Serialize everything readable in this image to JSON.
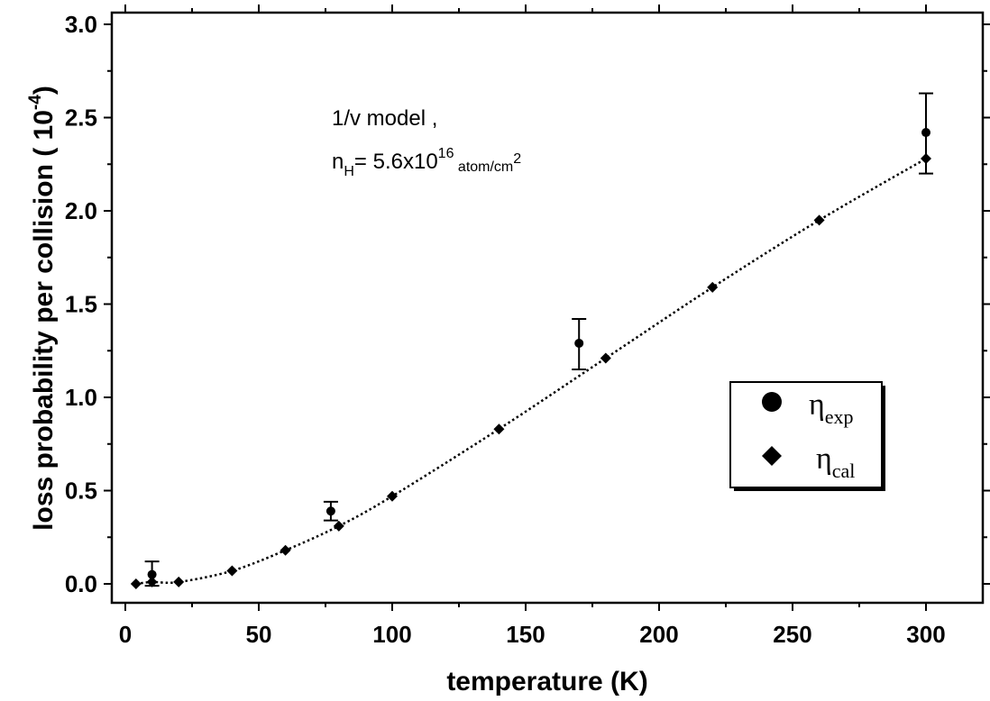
{
  "chart_data": {
    "type": "scatter",
    "xlabel": "temperature (K)",
    "ylabel": "loss probability per collision ( 10",
    "ylabel_exponent": "-4",
    "ylabel_close": ")",
    "xlim": [
      0,
      320
    ],
    "ylim": [
      -0.1,
      3.0
    ],
    "xticks": [
      0,
      50,
      100,
      150,
      200,
      250,
      300
    ],
    "xtick_labels": [
      "0",
      "50",
      "100",
      "150",
      "200",
      "250",
      "300"
    ],
    "yticks": [
      0.0,
      0.5,
      1.0,
      1.5,
      2.0,
      2.5,
      3.0
    ],
    "ytick_labels": [
      "0.0",
      "0.5",
      "1.0",
      "1.5",
      "2.0",
      "2.5",
      "3.0"
    ],
    "grid": false,
    "legend_position": "lower-right",
    "annotation": {
      "line1": "1/v model ,",
      "nh_prefix": "n",
      "nh_sub": "H",
      "nh_eq": "= 5.6x10",
      "nh_exp": "16",
      "nh_unit": " atom/cm",
      "nh_unit_exp": "2"
    },
    "series": [
      {
        "name": "η_exp",
        "legend_symbol": "η",
        "legend_sub": "exp",
        "marker": "circle",
        "x": [
          10,
          77,
          170,
          300
        ],
        "y": [
          0.05,
          0.39,
          1.29,
          2.42
        ],
        "err_low": [
          0.06,
          0.05,
          0.14,
          0.22
        ],
        "err_high": [
          0.07,
          0.05,
          0.13,
          0.21
        ]
      },
      {
        "name": "η_cal",
        "legend_symbol": "η",
        "legend_sub": "cal",
        "marker": "diamond",
        "line": "dotted",
        "x": [
          4,
          10,
          20,
          40,
          60,
          80,
          100,
          140,
          180,
          220,
          260,
          300
        ],
        "y": [
          0.0,
          0.01,
          0.01,
          0.07,
          0.18,
          0.31,
          0.47,
          0.83,
          1.21,
          1.59,
          1.95,
          2.28
        ]
      }
    ]
  }
}
